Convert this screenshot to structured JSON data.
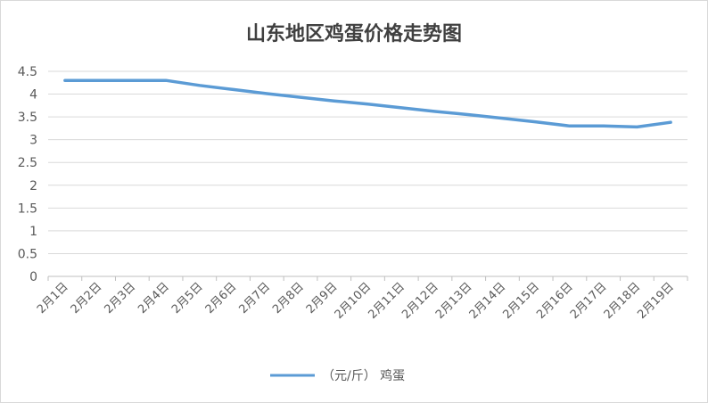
{
  "chart_data": {
    "type": "line",
    "title": "山东地区鸡蛋价格走势图",
    "categories": [
      "2月1日",
      "2月2日",
      "2月3日",
      "2月4日",
      "2月5日",
      "2月6日",
      "2月7日",
      "2月8日",
      "2月9日",
      "2月10日",
      "2月11日",
      "2月12日",
      "2月13日",
      "2月14日",
      "2月15日",
      "2月16日",
      "2月17日",
      "2月18日",
      "2月19日"
    ],
    "series": [
      {
        "name": "（元/斤） 鸡蛋",
        "color": "#5b9bd5",
        "values": [
          4.3,
          4.3,
          4.3,
          4.3,
          4.19,
          4.1,
          4.01,
          3.93,
          3.85,
          3.78,
          3.7,
          3.62,
          3.55,
          3.47,
          3.39,
          3.3,
          3.3,
          3.28,
          3.38
        ]
      }
    ],
    "yticks": [
      "4.5",
      "4",
      "3.5",
      "3",
      "2.5",
      "2",
      "1.5",
      "1",
      "0.5",
      "0"
    ],
    "ylim": [
      0,
      4.5
    ],
    "grid": true,
    "legend": "bottom"
  }
}
